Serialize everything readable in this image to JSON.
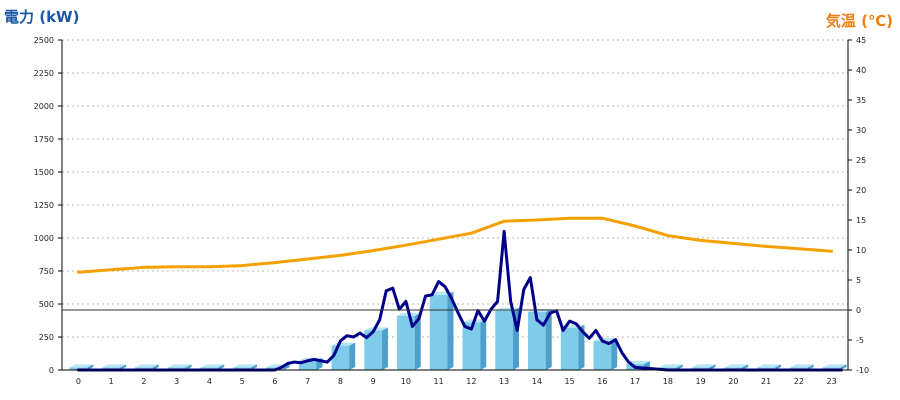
{
  "axes": {
    "left_title": "電力 (kW)",
    "right_title": "気温 (℃)"
  },
  "colors": {
    "bars": "#7fcbea",
    "bar_side": "#4d9fcc",
    "bar_top": "#b6e6f7",
    "power_line": "#00008b",
    "temp_line": "#f5a000",
    "grid": "#b9b9b9"
  },
  "chart_data": {
    "type": "bar-line combo",
    "title": "",
    "xlabel": "",
    "ylabel": "電力 (kW)",
    "y2label": "気温 (℃)",
    "grid": "horizontal dotted",
    "categories": [
      "0",
      "1",
      "2",
      "3",
      "4",
      "5",
      "6",
      "7",
      "8",
      "9",
      "10",
      "11",
      "12",
      "13",
      "14",
      "15",
      "16",
      "17",
      "18",
      "19",
      "20",
      "21",
      "22",
      "23"
    ],
    "y_ticks": [
      0,
      250,
      500,
      750,
      1000,
      1250,
      1500,
      1750,
      2000,
      2250,
      2500
    ],
    "y2_ticks": [
      -10,
      -5,
      0,
      5,
      10,
      15,
      20,
      25,
      30,
      35,
      40,
      45
    ],
    "ylim": [
      0,
      2500
    ],
    "y2lim": [
      -10,
      45
    ],
    "series": [
      {
        "kind": "bar",
        "values": [
          20,
          20,
          20,
          20,
          20,
          20,
          20,
          70,
          185,
          300,
          410,
          570,
          360,
          450,
          440,
          320,
          220,
          45,
          20,
          20,
          20,
          20,
          20,
          20
        ]
      },
      {
        "kind": "line",
        "axis": "left",
        "x": [
          0,
          0.5,
          1,
          1.5,
          2,
          2.5,
          3,
          3.5,
          4,
          4.5,
          5,
          5.5,
          6,
          6.2,
          6.4,
          6.6,
          6.8,
          7,
          7.2,
          7.4,
          7.6,
          7.8,
          8,
          8.2,
          8.4,
          8.6,
          8.8,
          9,
          9.2,
          9.4,
          9.6,
          9.8,
          10,
          10.2,
          10.4,
          10.6,
          10.8,
          11,
          11.2,
          11.4,
          11.6,
          11.8,
          12,
          12.2,
          12.4,
          12.6,
          12.8,
          13,
          13.2,
          13.4,
          13.6,
          13.8,
          14,
          14.2,
          14.4,
          14.6,
          14.8,
          15,
          15.2,
          15.4,
          15.6,
          15.8,
          16,
          16.2,
          16.4,
          16.6,
          16.8,
          17,
          17.5,
          18,
          19,
          20,
          21,
          22,
          23,
          23.3
        ],
        "values": [
          0,
          0,
          0,
          0,
          0,
          0,
          0,
          0,
          0,
          0,
          0,
          0,
          0,
          20,
          50,
          60,
          55,
          70,
          80,
          70,
          60,
          110,
          220,
          260,
          250,
          280,
          245,
          290,
          380,
          600,
          620,
          460,
          520,
          330,
          390,
          560,
          570,
          670,
          630,
          540,
          430,
          330,
          310,
          450,
          370,
          460,
          520,
          1050,
          520,
          300,
          610,
          700,
          380,
          340,
          430,
          450,
          300,
          370,
          350,
          290,
          240,
          300,
          220,
          200,
          230,
          130,
          60,
          20,
          10,
          0,
          0,
          0,
          0,
          0,
          0,
          0
        ]
      },
      {
        "kind": "line",
        "axis": "right",
        "x": [
          0,
          1,
          2,
          3,
          4,
          5,
          6,
          7,
          8,
          9,
          10,
          11,
          12,
          13,
          14,
          15,
          16,
          17,
          18,
          19,
          20,
          21,
          22,
          23
        ],
        "values": [
          6.3,
          6.7,
          7.1,
          7.2,
          7.2,
          7.4,
          7.9,
          8.5,
          9.1,
          9.9,
          10.8,
          11.8,
          12.8,
          14.8,
          15.0,
          15.3,
          15.3,
          14.0,
          12.4,
          11.6,
          11.1,
          10.6,
          10.2,
          9.8
        ]
      }
    ]
  }
}
